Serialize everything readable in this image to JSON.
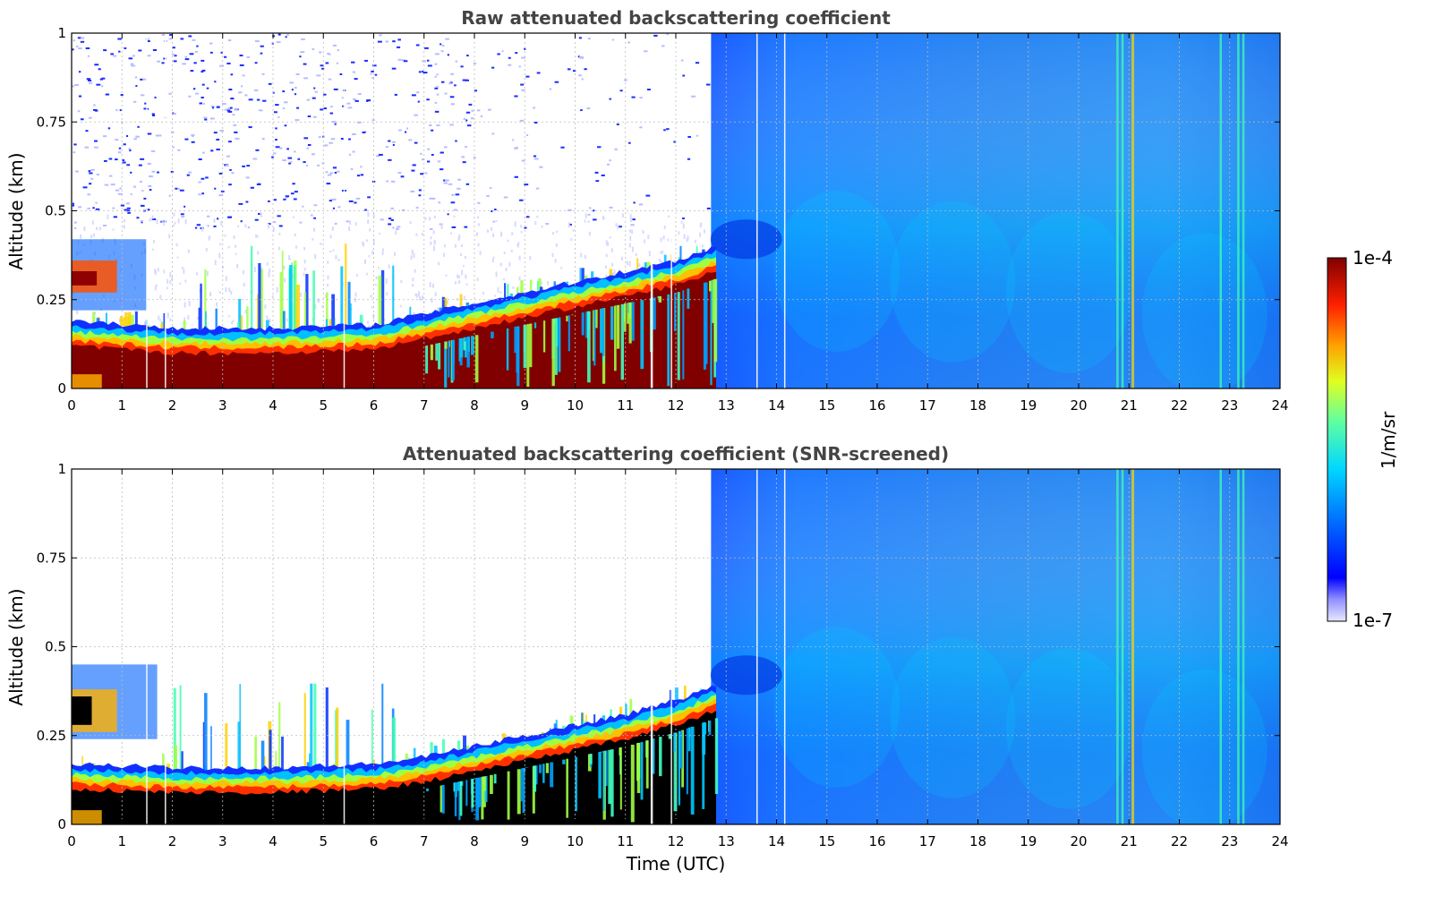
{
  "chart_data": [
    {
      "type": "heatmap",
      "title": "Raw attenuated backscattering coefficient",
      "xlabel": "",
      "ylabel": "Altitude (km)",
      "xlim": [
        0,
        24
      ],
      "ylim": [
        0,
        1
      ],
      "x_ticks": [
        "0",
        "1",
        "2",
        "3",
        "4",
        "5",
        "6",
        "7",
        "8",
        "9",
        "10",
        "11",
        "12",
        "13",
        "14",
        "15",
        "16",
        "17",
        "18",
        "19",
        "20",
        "21",
        "22",
        "23",
        "24"
      ],
      "y_ticks": [
        "0",
        "0.25",
        "0.5",
        "0.75",
        "1"
      ],
      "grid": true,
      "colorscale": "log",
      "vmin_label": "1e-7",
      "vmax_label": "1e-4",
      "features": {
        "surface_layer_top_km": [
          [
            0,
            0.12
          ],
          [
            2,
            0.1
          ],
          [
            4,
            0.1
          ],
          [
            6,
            0.11
          ],
          [
            7,
            0.14
          ],
          [
            8,
            0.17
          ],
          [
            9,
            0.2
          ],
          [
            10,
            0.23
          ],
          [
            11,
            0.26
          ],
          [
            12,
            0.29
          ],
          [
            12.8,
            0.33
          ]
        ],
        "residual_layer_km": [
          [
            0,
            0.3
          ],
          [
            1.5,
            0.3
          ]
        ],
        "noisy_region_hours": [
          0,
          12.7
        ],
        "fog_region_hours": [
          12.7,
          24
        ],
        "vertical_bright_streak_hours": [
          20.8,
          21.05,
          22.8,
          23.2
        ]
      }
    },
    {
      "type": "heatmap",
      "title": "Attenuated backscattering coefficient (SNR-screened)",
      "xlabel": "Time (UTC)",
      "ylabel": "Altitude (km)",
      "xlim": [
        0,
        24
      ],
      "ylim": [
        0,
        1
      ],
      "x_ticks": [
        "0",
        "1",
        "2",
        "3",
        "4",
        "5",
        "6",
        "7",
        "8",
        "9",
        "10",
        "11",
        "12",
        "13",
        "14",
        "15",
        "16",
        "17",
        "18",
        "19",
        "20",
        "21",
        "22",
        "23",
        "24"
      ],
      "y_ticks": [
        "0",
        "0.25",
        "0.5",
        "0.75",
        "1"
      ],
      "grid": true,
      "colorscale": "log",
      "vmin_label": "1e-7",
      "vmax_label": "1e-4",
      "features": {
        "saturated_layer_top_km": [
          [
            0,
            0.1
          ],
          [
            2,
            0.09
          ],
          [
            4,
            0.09
          ],
          [
            6,
            0.1
          ],
          [
            7,
            0.12
          ],
          [
            8,
            0.15
          ],
          [
            9,
            0.18
          ],
          [
            10,
            0.21
          ],
          [
            11,
            0.24
          ],
          [
            12,
            0.28
          ],
          [
            12.8,
            0.32
          ]
        ],
        "screened_region_hours": [
          0,
          12.7
        ],
        "fog_region_hours": [
          12.7,
          24
        ]
      }
    }
  ],
  "colorbar": {
    "unit_label": "1/m/sr",
    "top_label": "1e-4",
    "bottom_label": "1e-7"
  }
}
